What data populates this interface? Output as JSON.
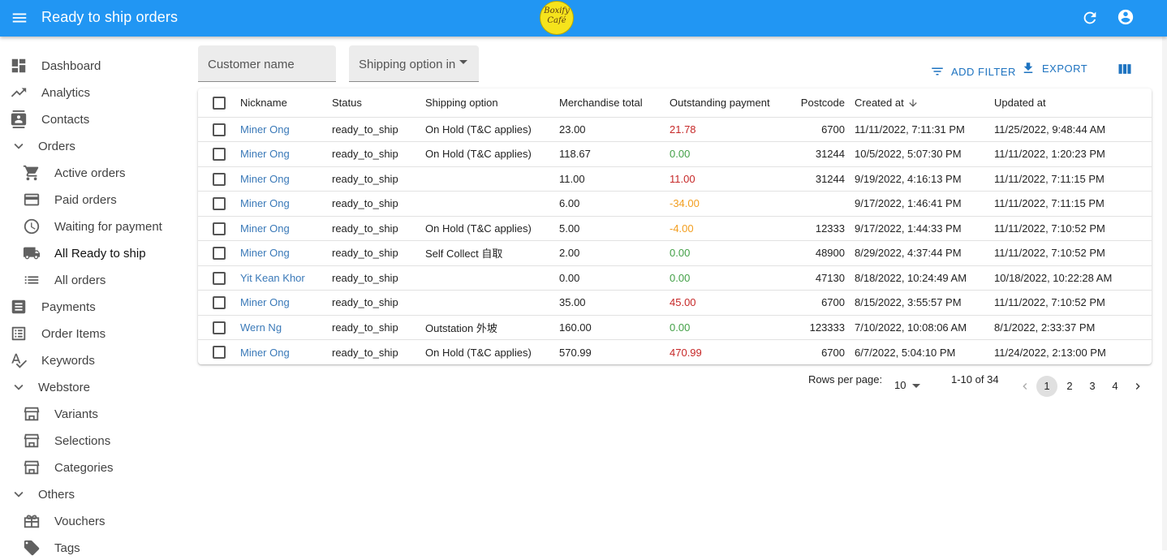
{
  "appbar": {
    "title": "Ready to ship orders",
    "logo_line1": "Boxify",
    "logo_line2": "Café",
    "color": "#2196f3"
  },
  "sidebar": {
    "items": [
      {
        "label": "Dashboard",
        "icon": "dashboard-icon"
      },
      {
        "label": "Analytics",
        "icon": "trending-up-icon"
      },
      {
        "label": "Contacts",
        "icon": "contacts-icon"
      },
      {
        "label": "Orders",
        "icon": "chevron-down-icon"
      },
      {
        "label": "Active orders",
        "icon": "shopping-cart-icon"
      },
      {
        "label": "Paid orders",
        "icon": "credit-card-icon"
      },
      {
        "label": "Waiting for payment",
        "icon": "clock-icon"
      },
      {
        "label": "All Ready to ship",
        "icon": "truck-icon"
      },
      {
        "label": "All orders",
        "icon": "list-icon"
      },
      {
        "label": "Payments",
        "icon": "receipt-icon"
      },
      {
        "label": "Order Items",
        "icon": "list-alt-icon"
      },
      {
        "label": "Keywords",
        "icon": "spellcheck-icon"
      },
      {
        "label": "Webstore",
        "icon": "chevron-down-icon"
      },
      {
        "label": "Variants",
        "icon": "store-icon"
      },
      {
        "label": "Selections",
        "icon": "store-icon"
      },
      {
        "label": "Categories",
        "icon": "store-icon"
      },
      {
        "label": "Others",
        "icon": "chevron-down-icon"
      },
      {
        "label": "Vouchers",
        "icon": "gift-card-icon"
      },
      {
        "label": "Tags",
        "icon": "tag-icon"
      }
    ]
  },
  "filters": {
    "customer_name": "Customer name",
    "shipping_option": "Shipping option in"
  },
  "toolbar": {
    "add_filter": "ADD FILTER",
    "export": "EXPORT"
  },
  "table": {
    "headers": {
      "nickname": "Nickname",
      "status": "Status",
      "shipping": "Shipping option",
      "merch": "Merchandise total",
      "outstanding": "Outstanding payment",
      "postcode": "Postcode",
      "created": "Created at",
      "updated": "Updated at"
    },
    "rows": [
      {
        "nickname": "Miner Ong",
        "status": "ready_to_ship",
        "shipping": "On Hold (T&C applies)",
        "merch": "23.00",
        "outstanding": "21.78",
        "tone": "neg",
        "postcode": "6700",
        "created": "11/11/2022, 7:11:31 PM",
        "updated": "11/25/2022, 9:48:44 AM"
      },
      {
        "nickname": "Miner Ong",
        "status": "ready_to_ship",
        "shipping": "On Hold (T&C applies)",
        "merch": "118.67",
        "outstanding": "0.00",
        "tone": "pos",
        "postcode": "31244",
        "created": "10/5/2022, 5:07:30 PM",
        "updated": "11/11/2022, 1:20:23 PM"
      },
      {
        "nickname": "Miner Ong",
        "status": "ready_to_ship",
        "shipping": "",
        "merch": "11.00",
        "outstanding": "11.00",
        "tone": "neg",
        "postcode": "31244",
        "created": "9/19/2022, 4:16:13 PM",
        "updated": "11/11/2022, 7:11:15 PM"
      },
      {
        "nickname": "Miner Ong",
        "status": "ready_to_ship",
        "shipping": "",
        "merch": "6.00",
        "outstanding": "-34.00",
        "tone": "warn",
        "postcode": "",
        "created": "9/17/2022, 1:46:41 PM",
        "updated": "11/11/2022, 7:11:15 PM"
      },
      {
        "nickname": "Miner Ong",
        "status": "ready_to_ship",
        "shipping": "On Hold (T&C applies)",
        "merch": "5.00",
        "outstanding": "-4.00",
        "tone": "warn",
        "postcode": "12333",
        "created": "9/17/2022, 1:44:33 PM",
        "updated": "11/11/2022, 7:10:52 PM"
      },
      {
        "nickname": "Miner Ong",
        "status": "ready_to_ship",
        "shipping": "Self Collect 自取",
        "merch": "2.00",
        "outstanding": "0.00",
        "tone": "pos",
        "postcode": "48900",
        "created": "8/29/2022, 4:37:44 PM",
        "updated": "11/11/2022, 7:10:52 PM"
      },
      {
        "nickname": "Yit Kean Khor",
        "status": "ready_to_ship",
        "shipping": "",
        "merch": "0.00",
        "outstanding": "0.00",
        "tone": "pos",
        "postcode": "47130",
        "created": "8/18/2022, 10:24:49 AM",
        "updated": "10/18/2022, 10:22:28 AM"
      },
      {
        "nickname": "Miner Ong",
        "status": "ready_to_ship",
        "shipping": "",
        "merch": "35.00",
        "outstanding": "45.00",
        "tone": "neg",
        "postcode": "6700",
        "created": "8/15/2022, 3:55:57 PM",
        "updated": "11/11/2022, 7:10:52 PM"
      },
      {
        "nickname": "Wern Ng",
        "status": "ready_to_ship",
        "shipping": "Outstation 外坡",
        "merch": "160.00",
        "outstanding": "0.00",
        "tone": "pos",
        "postcode": "123333",
        "created": "7/10/2022, 10:08:06 AM",
        "updated": "8/1/2022, 2:33:37 PM"
      },
      {
        "nickname": "Miner Ong",
        "status": "ready_to_ship",
        "shipping": "On Hold (T&C applies)",
        "merch": "570.99",
        "outstanding": "470.99",
        "tone": "neg",
        "postcode": "6700",
        "created": "6/7/2022, 5:04:10 PM",
        "updated": "11/24/2022, 2:13:00 PM"
      }
    ]
  },
  "pagination": {
    "rows_per_page_label": "Rows per page:",
    "rows_per_page": "10",
    "range": "1-10 of 34",
    "pages": [
      "1",
      "2",
      "3",
      "4"
    ],
    "current": "1"
  }
}
